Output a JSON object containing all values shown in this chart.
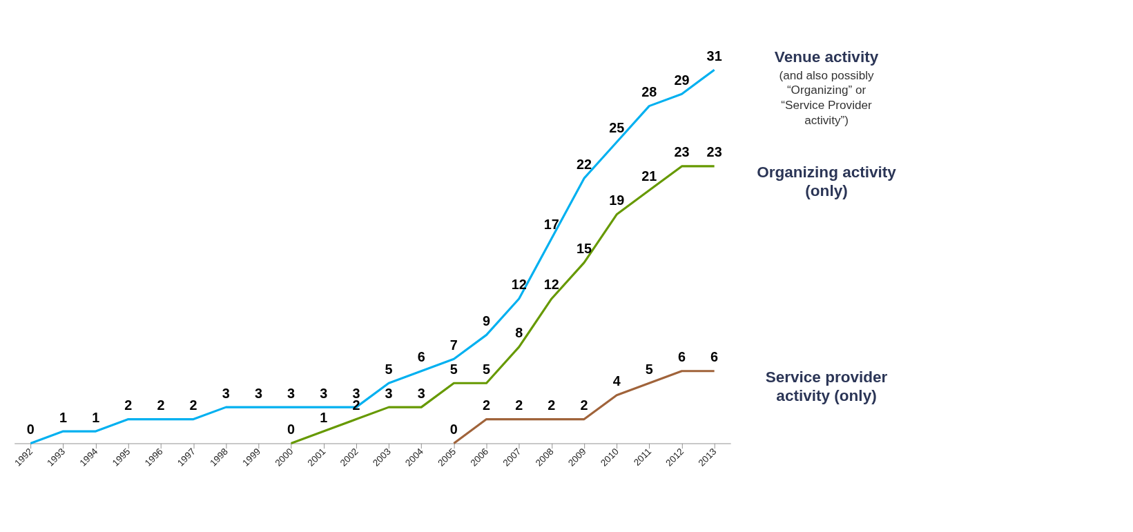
{
  "chart_data": {
    "type": "line",
    "categories": [
      "1992",
      "1993",
      "1994",
      "1995",
      "1996",
      "1997",
      "1998",
      "1999",
      "2000",
      "2001",
      "2002",
      "2003",
      "2004",
      "2005",
      "2006",
      "2007",
      "2008",
      "2009",
      "2010",
      "2011",
      "2012",
      "2013"
    ],
    "series": [
      {
        "name": "Venue activity",
        "color": "#00b0f0",
        "values": [
          0,
          1,
          1,
          2,
          2,
          2,
          3,
          3,
          3,
          3,
          3,
          5,
          6,
          7,
          9,
          12,
          17,
          22,
          25,
          28,
          29,
          31
        ]
      },
      {
        "name": "Organizing activity (only)",
        "color": "#669900",
        "values": [
          null,
          null,
          null,
          null,
          null,
          null,
          null,
          null,
          0,
          1,
          2,
          3,
          3,
          5,
          5,
          8,
          12,
          15,
          19,
          21,
          23,
          23
        ]
      },
      {
        "name": "Service provider activity (only)",
        "color": "#a0633a",
        "values": [
          null,
          null,
          null,
          null,
          null,
          null,
          null,
          null,
          null,
          null,
          null,
          null,
          null,
          0,
          2,
          2,
          2,
          2,
          4,
          5,
          6,
          6
        ]
      }
    ],
    "annotations": [
      "(and also possibly “Organizing” or “Service Provider activity”)"
    ],
    "tick_labels": "x",
    "data_labels": true,
    "legend": false,
    "grid": false,
    "marker": "none",
    "line_style": "solid"
  }
}
